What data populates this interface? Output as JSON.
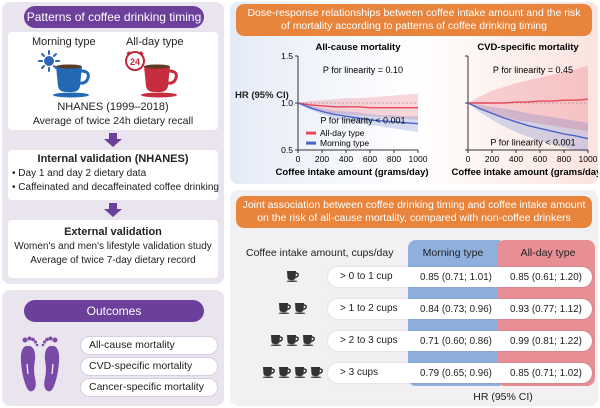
{
  "left": {
    "header": "Patterns of coffee drinking timing",
    "morning_label": "Morning type",
    "allday_label": "All-day type",
    "clock_text": "24",
    "nhanes_title": "NHANES (1999–2018)",
    "nhanes_sub": "Average of twice 24h dietary recall",
    "internal_title": "Internal validation (NHANES)",
    "internal_items": [
      "• Day 1 and day 2 dietary data",
      "• Caffeinated and decaffeinated coffee drinking"
    ],
    "external_title": "External validation",
    "external_sub1": "Women's and men's lifestyle validation study",
    "external_sub2": "Average of twice 7-day dietary record"
  },
  "outcomes": {
    "header": "Outcomes",
    "items": [
      "All-cause mortality",
      "CVD-specific mortality",
      "Cancer-specific mortality"
    ]
  },
  "dose": {
    "header": "Dose-response relationships between coffee intake amount and the risk of mortality according to patterns of coffee drinking timing",
    "ylabel": "HR (95% CI)",
    "colors": {
      "allday": "#e8485a",
      "morning": "#4a63c8"
    },
    "legend": [
      "All-day type",
      "Morning type"
    ]
  },
  "chart_data": [
    {
      "type": "line",
      "title": "All-cause mortality",
      "xlabel": "Coffee intake amount (grams/day)",
      "ylabel": "HR (95% CI)",
      "x": [
        0,
        100,
        200,
        300,
        400,
        500,
        600,
        700,
        800,
        900,
        1000
      ],
      "xticks": [
        "0",
        "200",
        "400",
        "600",
        "800",
        "1000"
      ],
      "yticks": [
        "0.5",
        "1.0",
        "1.5"
      ],
      "ylim": [
        0.5,
        1.5
      ],
      "annotations": [
        "P for linearity = 0.10",
        "P for linearity < 0.001"
      ],
      "series": [
        {
          "name": "All-day type",
          "values": [
            1.0,
            0.98,
            0.97,
            0.96,
            0.96,
            0.96,
            0.95,
            0.95,
            0.95,
            0.95,
            0.95
          ],
          "lower": [
            1.0,
            0.94,
            0.91,
            0.89,
            0.88,
            0.87,
            0.86,
            0.85,
            0.84,
            0.83,
            0.82
          ],
          "upper": [
            1.0,
            1.02,
            1.03,
            1.04,
            1.05,
            1.05,
            1.06,
            1.07,
            1.08,
            1.09,
            1.1
          ]
        },
        {
          "name": "Morning type",
          "values": [
            1.0,
            0.95,
            0.91,
            0.88,
            0.86,
            0.84,
            0.82,
            0.81,
            0.8,
            0.79,
            0.78
          ],
          "lower": [
            1.0,
            0.93,
            0.88,
            0.84,
            0.81,
            0.79,
            0.77,
            0.75,
            0.73,
            0.71,
            0.69
          ],
          "upper": [
            1.0,
            0.97,
            0.94,
            0.92,
            0.91,
            0.9,
            0.88,
            0.87,
            0.87,
            0.86,
            0.86
          ]
        }
      ]
    },
    {
      "type": "line",
      "title": "CVD-specific mortality",
      "xlabel": "Coffee intake amount (grams/day)",
      "ylabel": "",
      "x": [
        0,
        100,
        200,
        300,
        400,
        500,
        600,
        700,
        800,
        900,
        1000
      ],
      "xticks": [
        "0",
        "200",
        "400",
        "600",
        "800",
        "1000"
      ],
      "yticks": [],
      "ylim": [
        0.5,
        1.5
      ],
      "annotations": [
        "P for linearity = 0.45",
        "P for linearity < 0.001"
      ],
      "series": [
        {
          "name": "All-day type",
          "values": [
            1.0,
            1.0,
            1.0,
            1.0,
            1.01,
            1.01,
            1.02,
            1.02,
            1.03,
            1.03,
            1.04
          ],
          "lower": [
            1.0,
            0.93,
            0.88,
            0.85,
            0.82,
            0.8,
            0.78,
            0.76,
            0.74,
            0.72,
            0.7
          ],
          "upper": [
            1.0,
            1.07,
            1.13,
            1.17,
            1.21,
            1.24,
            1.27,
            1.3,
            1.33,
            1.36,
            1.4
          ]
        },
        {
          "name": "Morning type",
          "values": [
            1.0,
            0.94,
            0.89,
            0.84,
            0.8,
            0.76,
            0.73,
            0.7,
            0.67,
            0.65,
            0.62
          ],
          "lower": [
            1.0,
            0.9,
            0.82,
            0.75,
            0.69,
            0.64,
            0.6,
            0.56,
            0.53,
            0.5,
            0.48
          ],
          "upper": [
            1.0,
            0.98,
            0.96,
            0.94,
            0.92,
            0.89,
            0.87,
            0.85,
            0.83,
            0.81,
            0.79
          ]
        }
      ]
    }
  ],
  "joint": {
    "header": "Joint association between coffee drinking timing and coffee intake amount on the risk of all-cause mortality, compared with non-coffee drinkers",
    "col_intake": "Coffee intake amount, cups/day",
    "col_morning": "Morning type",
    "col_allday": "All-day type",
    "footer": "HR (95% CI)",
    "rows": [
      {
        "label": "> 0 to 1 cup",
        "cups": 1,
        "morning": "0.85 (0.71; 1.01)",
        "allday": "0.85 (0.61; 1.20)"
      },
      {
        "label": "> 1 to 2 cups",
        "cups": 2,
        "morning": "0.84 (0.73; 0.96)",
        "allday": "0.93 (0.77; 1.12)"
      },
      {
        "label": "> 2 to 3 cups",
        "cups": 3,
        "morning": "0.71 (0.60; 0.86)",
        "allday": "0.99 (0.81; 1.22)"
      },
      {
        "label": "> 3 cups",
        "cups": 4,
        "morning": "0.79 (0.65; 0.96)",
        "allday": "0.85 (0.71; 1.02)"
      }
    ]
  }
}
